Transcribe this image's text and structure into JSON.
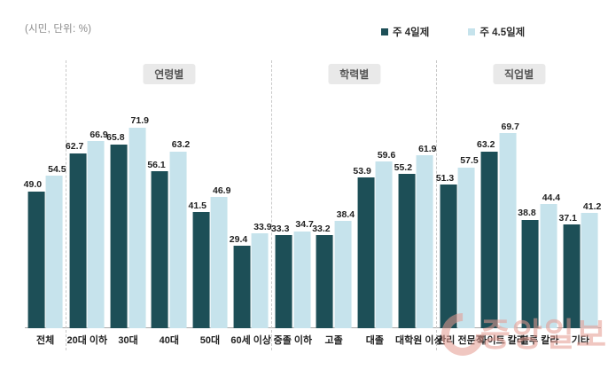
{
  "unit_label": "(시민, 단위: %)",
  "watermark": {
    "text": "중앙일보"
  },
  "chart_data": {
    "type": "bar",
    "unit": "%",
    "value_labels": true,
    "grid": false,
    "legend_position": "top",
    "ylim": [
      0,
      80
    ],
    "series": [
      {
        "name": "주 4일제",
        "color": "#1d4f57"
      },
      {
        "name": "주 4.5일제",
        "color": "#c6e3ec"
      }
    ],
    "sections": [
      {
        "label": "",
        "categories": [
          "전체"
        ],
        "values": [
          [
            49.0,
            54.5
          ]
        ]
      },
      {
        "label": "연령별",
        "categories": [
          "20대 이하",
          "30대",
          "40대",
          "50대",
          "60세 이상"
        ],
        "values": [
          [
            62.7,
            66.9
          ],
          [
            65.8,
            71.9
          ],
          [
            56.1,
            63.2
          ],
          [
            41.5,
            46.9
          ],
          [
            29.4,
            33.9
          ]
        ]
      },
      {
        "label": "학력별",
        "categories": [
          "중졸 이하",
          "고졸",
          "대졸",
          "대학원 이상"
        ],
        "values": [
          [
            33.3,
            34.7
          ],
          [
            33.2,
            38.4
          ],
          [
            53.9,
            59.6
          ],
          [
            55.2,
            61.9
          ]
        ]
      },
      {
        "label": "직업별",
        "categories": [
          "관리 전문직",
          "화이트 칼라",
          "블루 칼라",
          "기타"
        ],
        "values": [
          [
            51.3,
            57.5
          ],
          [
            63.2,
            69.7
          ],
          [
            38.8,
            44.4
          ],
          [
            37.1,
            41.2
          ]
        ]
      }
    ]
  }
}
